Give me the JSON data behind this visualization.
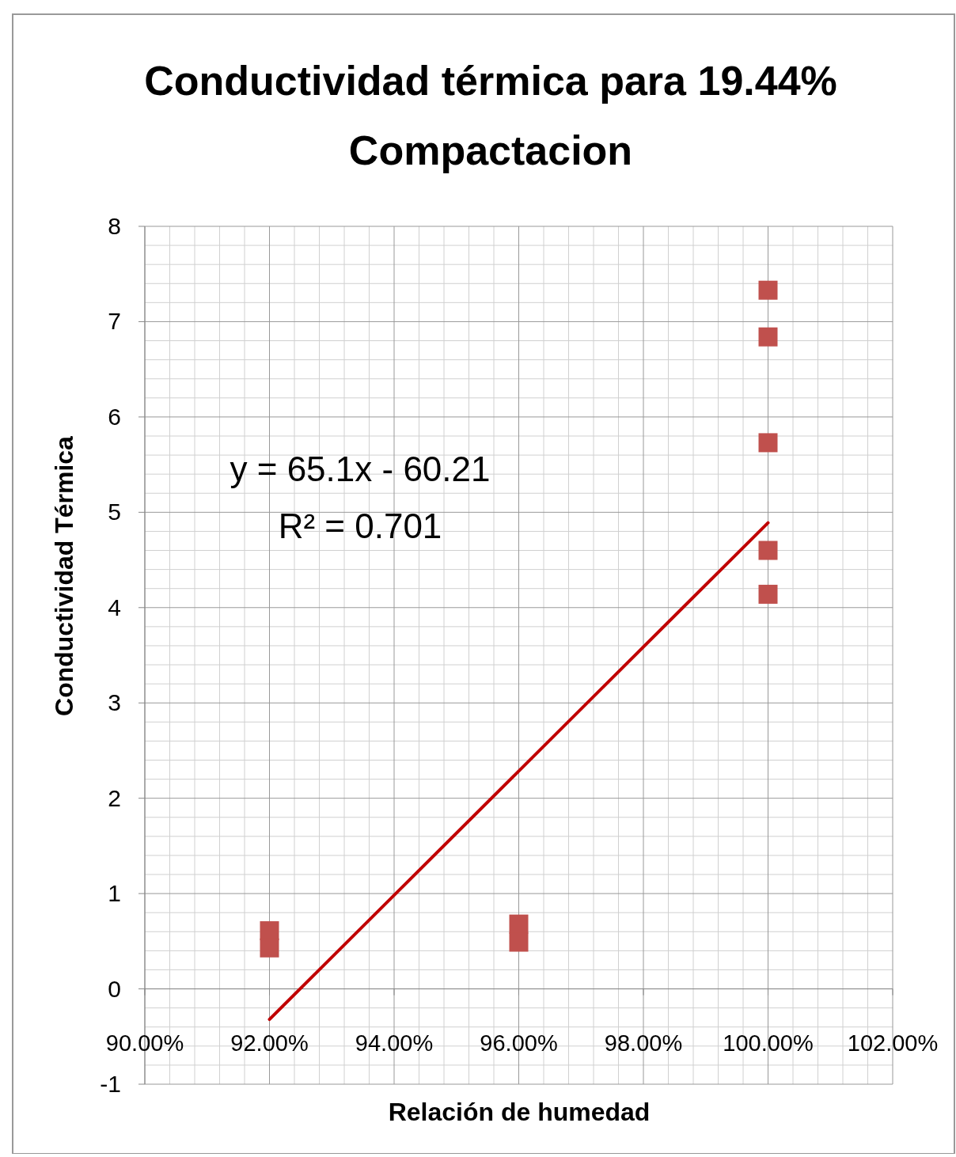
{
  "chart_data": {
    "type": "scatter",
    "title": "Conductividad térmica para 19.44%\nCompactacion",
    "xlabel": "Relación de humedad",
    "ylabel": "Conductividad Térmica",
    "xlim": [
      0.9,
      1.02
    ],
    "xticks": [
      {
        "value": 0.9,
        "label": "90.00%"
      },
      {
        "value": 0.92,
        "label": "92.00%"
      },
      {
        "value": 0.94,
        "label": "94.00%"
      },
      {
        "value": 0.96,
        "label": "96.00%"
      },
      {
        "value": 0.98,
        "label": "98.00%"
      },
      {
        "value": 1.0,
        "label": "100.00%"
      },
      {
        "value": 1.02,
        "label": "102.00%"
      }
    ],
    "ylim": [
      -1,
      8
    ],
    "yticks": [
      -1,
      0,
      1,
      2,
      3,
      4,
      5,
      6,
      7,
      8
    ],
    "grid": true,
    "marker": "square",
    "annotations": [
      "y = 65.1x - 60.21",
      "R² = 0.701"
    ],
    "series": [
      {
        "color": "#c0504d",
        "x": [
          0.92,
          0.92,
          0.96,
          0.96,
          1.0,
          1.0,
          1.0,
          1.0,
          1.0
        ],
        "values": [
          0.61,
          0.43,
          0.68,
          0.49,
          7.33,
          6.84,
          5.73,
          4.6,
          4.14
        ]
      },
      {
        "type": "line",
        "color": "#c00000",
        "marker": "none",
        "x": [
          0.92,
          1.0
        ],
        "values": [
          -0.32,
          4.89
        ]
      }
    ]
  }
}
